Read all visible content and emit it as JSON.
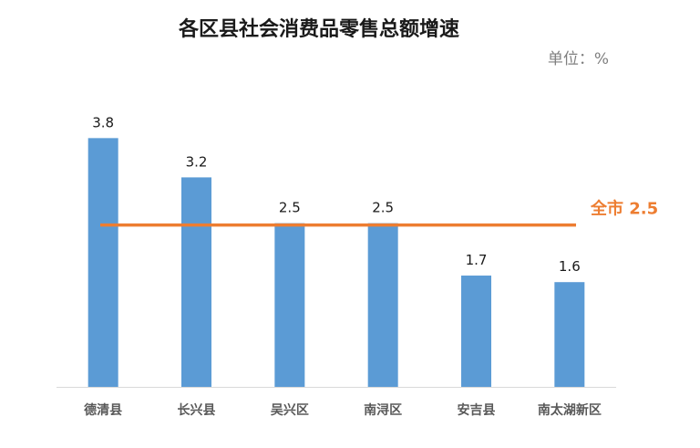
{
  "chart_data": {
    "type": "bar",
    "title": "各区县社会消费品零售总额增速",
    "unit_label": "单位：%",
    "categories": [
      "德清县",
      "长兴县",
      "吴兴区",
      "南浔区",
      "安吉县",
      "南太湖新区"
    ],
    "values": [
      3.8,
      3.2,
      2.5,
      2.5,
      1.7,
      1.6
    ],
    "value_labels": [
      "3.8",
      "3.2",
      "2.5",
      "2.5",
      "1.7",
      "1.6"
    ],
    "ylim": [
      0,
      4
    ],
    "grid": false,
    "legend": "none",
    "reference_line": {
      "label": "全市 2.5",
      "value": 2.5,
      "color": "#ED7D31"
    },
    "bar_color": "#5B9BD5"
  }
}
